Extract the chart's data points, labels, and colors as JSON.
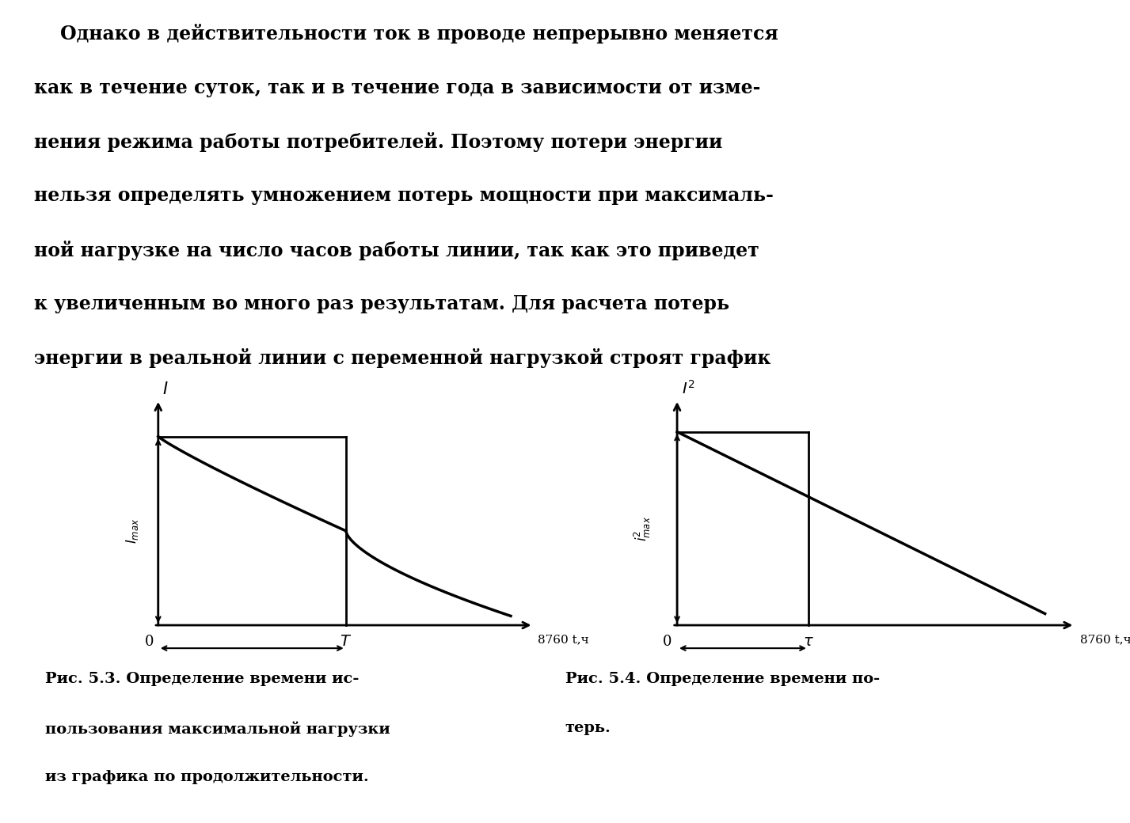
{
  "bg_color": "#ffffff",
  "text_color": "#000000",
  "header_lines": [
    "    Однако в действительности ток в проводе непрерывно меняется",
    "как в течение суток, так и в течение года в зависимости от изме-",
    "нения режима работы потребителей. Поэтому потери энергии",
    "нельзя определять умножением потерь мощности при максималь-",
    "ной нагрузке на число часов работы линии, так как это приведет",
    "к увеличенным во много раз результатам. Для расчета потерь",
    "энергии в реальной линии с переменной нагрузкой строят график"
  ],
  "fig1_caption_line1": "Рис. 5.3. Определение времени ис-",
  "fig1_caption_line2": "пользования максимальной нагрузки",
  "fig1_caption_line3": "из графика по продолжительности.",
  "fig2_caption_line1": "Рис. 5.4. Определение времени по-",
  "fig2_caption_line2": "терь.",
  "line_width": 2.5,
  "axis_lw": 2.0
}
